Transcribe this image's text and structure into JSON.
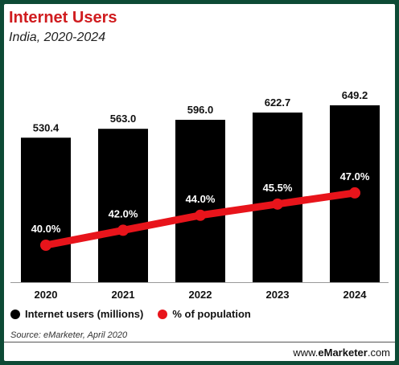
{
  "header": {
    "title": "Internet Users",
    "subtitle": "India, 2020-2024"
  },
  "chart_data": {
    "type": "bar",
    "categories": [
      "2020",
      "2021",
      "2022",
      "2023",
      "2024"
    ],
    "series": [
      {
        "name": "Internet users (millions)",
        "kind": "bar",
        "color": "#000000",
        "values": [
          530.4,
          563.0,
          596.0,
          622.7,
          649.2
        ],
        "labels": [
          "530.4",
          "563.0",
          "596.0",
          "622.7",
          "649.2"
        ]
      },
      {
        "name": "% of population",
        "kind": "line",
        "color": "#e8141b",
        "values": [
          40.0,
          42.0,
          44.0,
          45.5,
          47.0
        ],
        "labels": [
          "40.0%",
          "42.0%",
          "44.0%",
          "45.5%",
          "47.0%"
        ]
      }
    ],
    "grid": false,
    "legend_position": "bottom-left"
  },
  "footer": {
    "source": "Source: eMarketer, April 2020",
    "brand_prefix": "www.",
    "brand_bold": "eMarketer",
    "brand_suffix": ".com"
  }
}
